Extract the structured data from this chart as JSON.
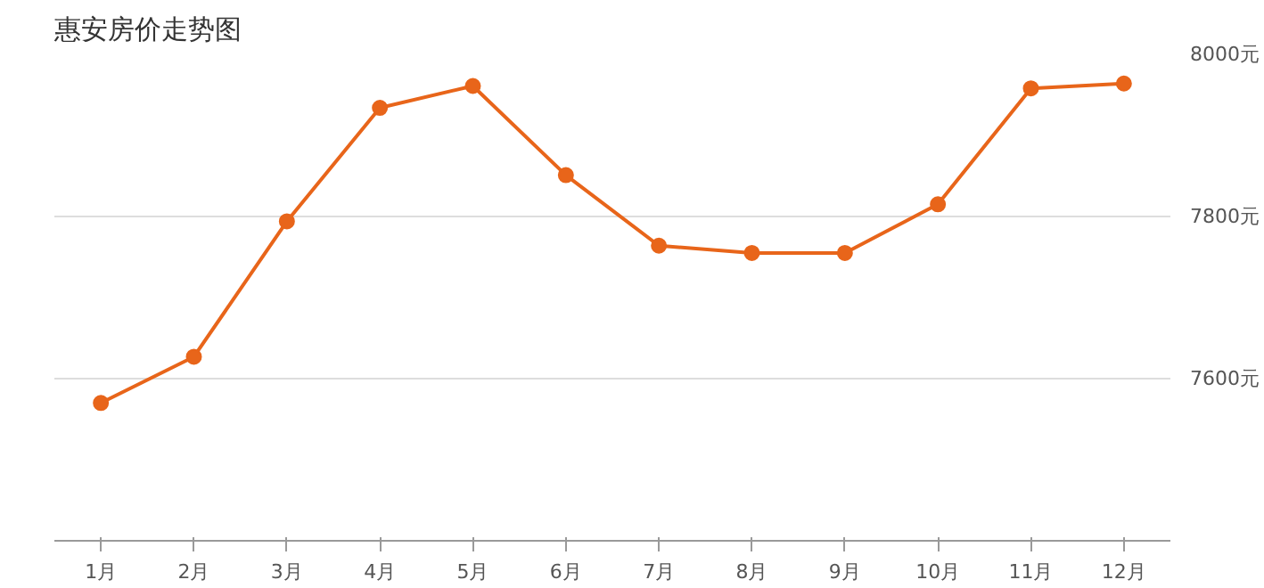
{
  "chart_data": {
    "type": "line",
    "title": "惠安房价走势图",
    "categories": [
      "1月",
      "2月",
      "3月",
      "4月",
      "5月",
      "6月",
      "7月",
      "8月",
      "9月",
      "10月",
      "11月",
      "12月"
    ],
    "series": [
      {
        "color": "#e8651a",
        "values": [
          7570,
          7627,
          7794,
          7934,
          7961,
          7851,
          7764,
          7755,
          7755,
          7815,
          7958,
          7964
        ]
      }
    ],
    "ylim": [
      7400,
      8000
    ],
    "yticks": [
      {
        "value": 7600,
        "label": "7600元"
      },
      {
        "value": 7800,
        "label": "7800元"
      },
      {
        "value": 8000,
        "label": "8000元"
      }
    ],
    "grid": "y",
    "marker": "circle",
    "line_style": "solid"
  }
}
